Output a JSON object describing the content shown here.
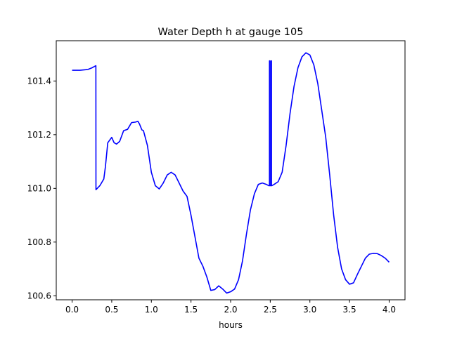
{
  "chart_data": {
    "type": "line",
    "title": "Water Depth h at gauge 105",
    "xlabel": "hours",
    "ylabel": "",
    "xlim": [
      -0.2,
      4.2
    ],
    "ylim": [
      100.585,
      101.55
    ],
    "xticks": [
      0.0,
      0.5,
      1.0,
      1.5,
      2.0,
      2.5,
      3.0,
      3.5,
      4.0
    ],
    "xtick_labels": [
      "0.0",
      "0.5",
      "1.0",
      "1.5",
      "2.0",
      "2.5",
      "3.0",
      "3.5",
      "4.0"
    ],
    "yticks": [
      100.6,
      100.8,
      101.0,
      101.2,
      101.4
    ],
    "ytick_labels": [
      "100.6",
      "100.8",
      "101.0",
      "101.2",
      "101.4"
    ],
    "grid": false,
    "legend": "none",
    "series": [
      {
        "color": "#0000ff",
        "x": [
          0.0,
          0.1,
          0.2,
          0.25,
          0.3,
          0.301,
          0.35,
          0.4,
          0.42,
          0.45,
          0.5,
          0.53,
          0.56,
          0.6,
          0.65,
          0.7,
          0.73,
          0.75,
          0.8,
          0.83,
          0.85,
          0.88,
          0.9,
          0.95,
          1.0,
          1.05,
          1.1,
          1.15,
          1.2,
          1.25,
          1.3,
          1.35,
          1.4,
          1.45,
          1.5,
          1.55,
          1.6,
          1.65,
          1.7,
          1.75,
          1.8,
          1.85,
          1.9,
          1.95,
          2.0,
          2.05,
          2.1,
          2.15,
          2.2,
          2.25,
          2.3,
          2.35,
          2.4,
          2.45,
          2.48,
          2.49,
          2.4901,
          2.495,
          2.4951,
          2.5,
          2.51,
          2.5101,
          2.515,
          2.5151,
          2.52,
          2.55,
          2.6,
          2.65,
          2.7,
          2.75,
          2.8,
          2.85,
          2.9,
          2.95,
          3.0,
          3.05,
          3.1,
          3.15,
          3.2,
          3.25,
          3.3,
          3.35,
          3.4,
          3.45,
          3.5,
          3.55,
          3.6,
          3.65,
          3.7,
          3.75,
          3.8,
          3.85,
          3.9,
          3.95,
          4.0
        ],
        "y": [
          101.44,
          101.44,
          101.443,
          101.449,
          101.457,
          100.995,
          101.01,
          101.035,
          101.08,
          101.17,
          101.19,
          101.17,
          101.165,
          101.175,
          101.215,
          101.22,
          101.235,
          101.245,
          101.247,
          101.25,
          101.24,
          101.218,
          101.215,
          101.16,
          101.06,
          101.01,
          100.998,
          101.02,
          101.05,
          101.06,
          101.05,
          101.02,
          100.99,
          100.97,
          100.9,
          100.82,
          100.74,
          100.71,
          100.67,
          100.62,
          100.623,
          100.637,
          100.625,
          100.61,
          100.615,
          100.625,
          100.66,
          100.73,
          100.83,
          100.92,
          100.98,
          101.015,
          101.02,
          101.015,
          101.01,
          101.01,
          101.475,
          101.475,
          101.01,
          101.01,
          101.01,
          101.475,
          101.475,
          101.01,
          101.01,
          101.015,
          101.025,
          101.06,
          101.16,
          101.28,
          101.38,
          101.45,
          101.49,
          101.505,
          101.497,
          101.46,
          101.39,
          101.29,
          101.19,
          101.05,
          100.9,
          100.78,
          100.7,
          100.66,
          100.643,
          100.648,
          100.68,
          100.71,
          100.74,
          100.755,
          100.758,
          100.757,
          100.75,
          100.74,
          100.725
        ]
      }
    ]
  }
}
